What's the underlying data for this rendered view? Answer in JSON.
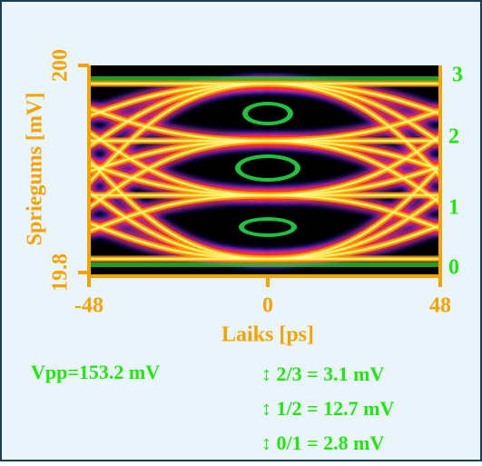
{
  "y_axis": {
    "label": "Spriegums [mV]",
    "max": "200",
    "min": "19.8"
  },
  "x_axis": {
    "label": "Laiks [ps]",
    "ticks": [
      "-48",
      "0",
      "48"
    ]
  },
  "levels": [
    "3",
    "2",
    "1",
    "0"
  ],
  "measurements": {
    "vpp": "Vpp=153.2 mV",
    "eyes": [
      "↕ 2/3 = 3.1 mV",
      "↕ 1/2 = 12.7 mV",
      "↕ 0/1 = 2.8 mV"
    ]
  }
}
